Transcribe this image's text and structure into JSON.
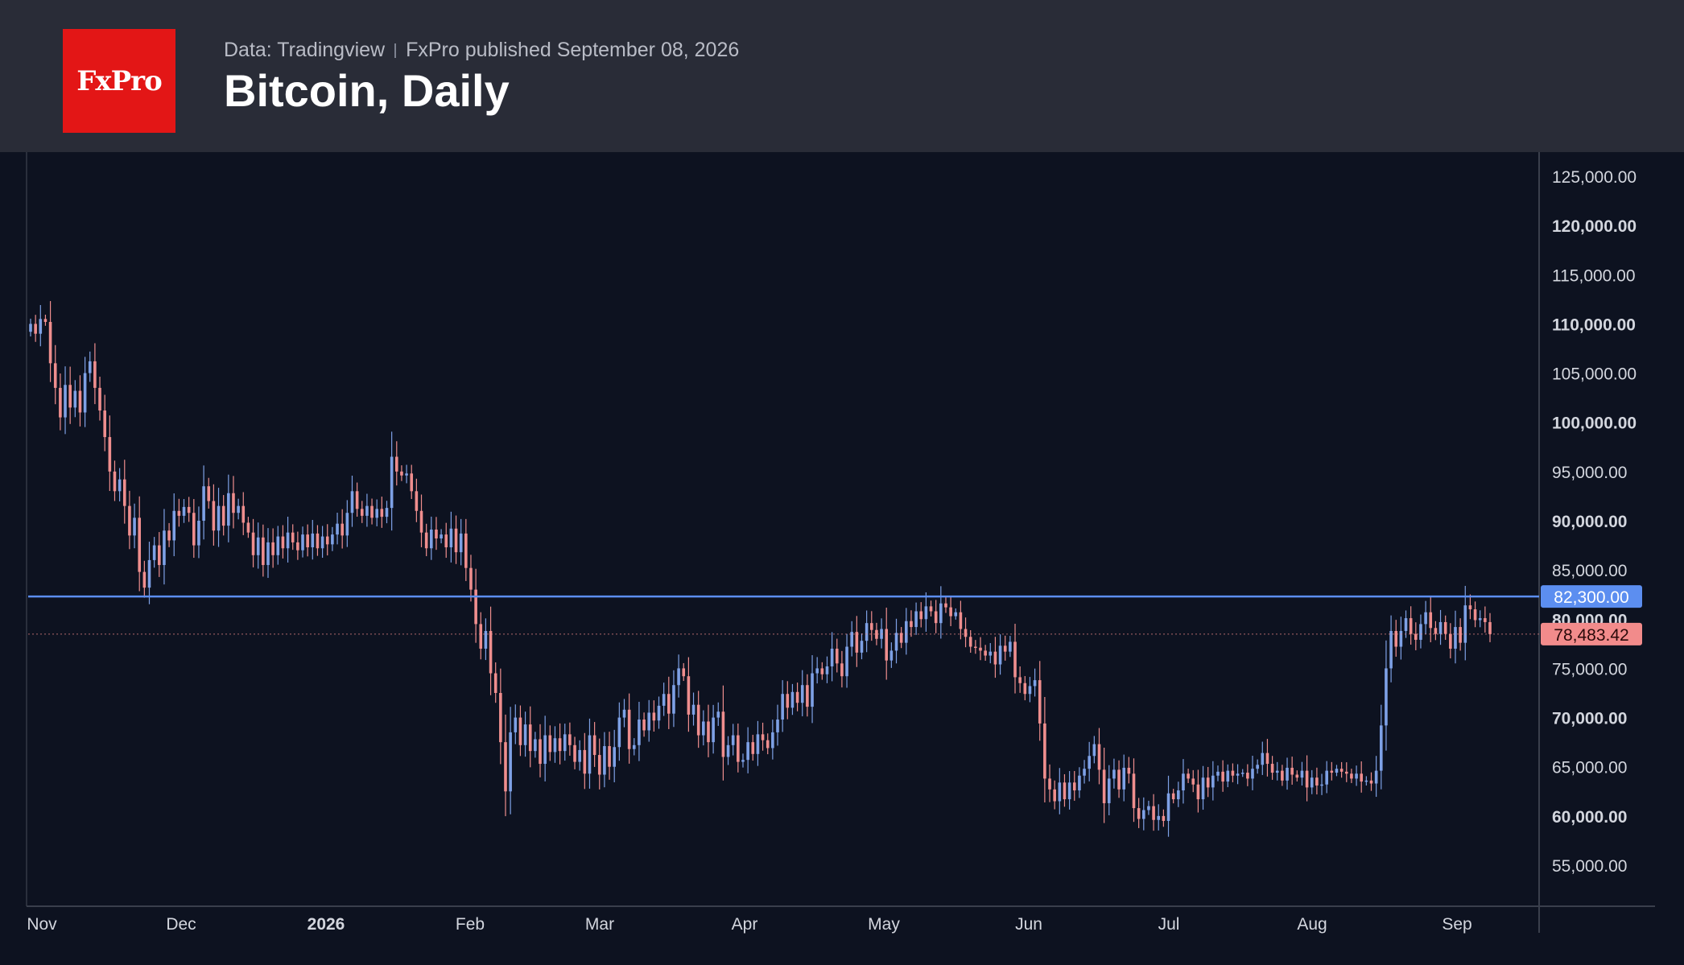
{
  "header": {
    "logo_text": "FxPro",
    "source": "Data: Tradingview",
    "published": "FxPro published September 08, 2026",
    "title": "Bitcoin, Daily"
  },
  "colors": {
    "up": "#7ea1e6",
    "down": "#ef8e8e",
    "level_line": "#5c8ef0",
    "price_tag": "#f28b8b",
    "header_bg": "#292c37",
    "chart_bg": "#0d1220",
    "logo_bg": "#e31616"
  },
  "chart_data": {
    "type": "candlestick",
    "title": "Bitcoin, Daily",
    "ylim": [
      51000,
      128000
    ],
    "y_ticks": [
      {
        "value": 125000,
        "label": "125,000.00",
        "bold": false
      },
      {
        "value": 120000,
        "label": "120,000.00",
        "bold": true
      },
      {
        "value": 115000,
        "label": "115,000.00",
        "bold": false
      },
      {
        "value": 110000,
        "label": "110,000.00",
        "bold": true
      },
      {
        "value": 105000,
        "label": "105,000.00",
        "bold": false
      },
      {
        "value": 100000,
        "label": "100,000.00",
        "bold": true
      },
      {
        "value": 95000,
        "label": "95,000.00",
        "bold": false
      },
      {
        "value": 90000,
        "label": "90,000.00",
        "bold": true
      },
      {
        "value": 85000,
        "label": "85,000.00",
        "bold": false
      },
      {
        "value": 80000,
        "label": "80,000.00",
        "bold": true
      },
      {
        "value": 75000,
        "label": "75,000.00",
        "bold": false
      },
      {
        "value": 70000,
        "label": "70,000.00",
        "bold": true
      },
      {
        "value": 65000,
        "label": "65,000.00",
        "bold": false
      },
      {
        "value": 60000,
        "label": "60,000.00",
        "bold": true
      },
      {
        "value": 55000,
        "label": "55,000.00",
        "bold": false
      }
    ],
    "x_ticks": [
      {
        "label": "Nov",
        "bold": false
      },
      {
        "label": "Dec",
        "bold": false
      },
      {
        "label": "2026",
        "bold": true
      },
      {
        "label": "Feb",
        "bold": false
      },
      {
        "label": "Mar",
        "bold": false
      },
      {
        "label": "Apr",
        "bold": false
      },
      {
        "label": "May",
        "bold": false
      },
      {
        "label": "Jun",
        "bold": false
      },
      {
        "label": "Jul",
        "bold": false
      },
      {
        "label": "Aug",
        "bold": false
      },
      {
        "label": "Sep",
        "bold": false
      }
    ],
    "level": {
      "value": 82300,
      "label": "82,300.00"
    },
    "last_price": {
      "value": 78483.42,
      "label": "78,483.42"
    },
    "closes": [
      110000,
      109000,
      110500,
      110200,
      106000,
      103500,
      100500,
      103800,
      101500,
      103200,
      101000,
      105000,
      106200,
      103500,
      101200,
      98500,
      95000,
      93000,
      94200,
      91500,
      88500,
      90300,
      84800,
      83200,
      86000,
      87500,
      85500,
      89000,
      88000,
      91000,
      90500,
      91400,
      90800,
      87500,
      90000,
      93500,
      92000,
      89000,
      91500,
      89500,
      92800,
      90800,
      91500,
      89800,
      88800,
      86500,
      88300,
      85500,
      87800,
      86500,
      88400,
      87200,
      88800,
      87800,
      87000,
      88600,
      87300,
      88700,
      87200,
      88400,
      87600,
      88600,
      89700,
      88500,
      90800,
      93000,
      91200,
      90500,
      91500,
      90300,
      91200,
      90400,
      91300,
      96500,
      95000,
      94600,
      94800,
      93000,
      91000,
      88800,
      87200,
      89100,
      88200,
      88600,
      87300,
      89200,
      86800,
      88700,
      85200,
      83000,
      79500,
      77000,
      78800,
      74500,
      72500,
      67500,
      62500,
      68500,
      70000,
      67200,
      69300,
      66600,
      67800,
      65300,
      68200,
      66500,
      67900,
      66600,
      68300,
      67200,
      65500,
      66700,
      64300,
      68200,
      66200,
      64200,
      67100,
      65000,
      67000,
      70000,
      70800,
      66800,
      67200,
      69800,
      68700,
      70500,
      69700,
      71200,
      72400,
      70400,
      73300,
      75000,
      74200,
      70300,
      71300,
      68200,
      69600,
      67500,
      70000,
      70600,
      66000,
      67200,
      68200,
      65500,
      65700,
      67500,
      66300,
      68300,
      67700,
      66900,
      68500,
      69800,
      72400,
      71000,
      72600,
      71500,
      73300,
      71100,
      74500,
      75000,
      74400,
      75200,
      77000,
      75500,
      74200,
      77200,
      78700,
      76600,
      77800,
      79600,
      78900,
      78000,
      79000,
      75800,
      76800,
      78600,
      77600,
      79800,
      79200,
      80800,
      80000,
      81300,
      80800,
      79600,
      81600,
      81200,
      80300,
      80700,
      79000,
      78200,
      77200,
      77100,
      76800,
      76300,
      76700,
      75400,
      77300,
      76700,
      77700,
      74100,
      73500,
      72400,
      73200,
      73800,
      69400,
      63800,
      62700,
      61500,
      63400,
      61700,
      63400,
      62600,
      64100,
      64800,
      66100,
      67300,
      64700,
      61300,
      63800,
      64700,
      62700,
      64900,
      64300,
      60800,
      59700,
      60600,
      61000,
      59600,
      60000,
      59500,
      62300,
      61700,
      62600,
      64300,
      63800,
      63200,
      61700,
      63900,
      62900,
      64100,
      64500,
      63500,
      64600,
      64100,
      64300,
      64400,
      63800,
      64800,
      65200,
      66400,
      65300,
      64400,
      64600,
      63600,
      64900,
      64200,
      63900,
      64600,
      62900,
      63900,
      63100,
      63200,
      64600,
      64400,
      64800,
      64500,
      64300,
      63800,
      64300,
      63500,
      63600,
      63300,
      64600,
      69200,
      75000,
      78800,
      77200,
      78800,
      80100,
      78500,
      77900,
      79500,
      80700,
      79100,
      78500,
      79700,
      78500,
      77000,
      79200,
      77600,
      81400,
      81000,
      79900,
      80100,
      79700,
      78483
    ]
  }
}
